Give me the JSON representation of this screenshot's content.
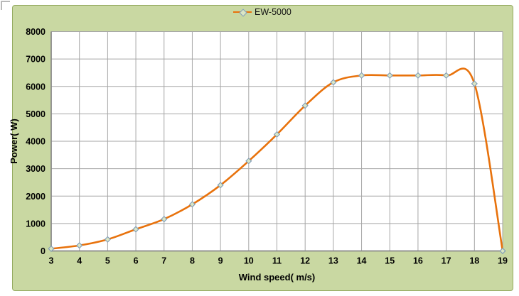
{
  "chart": {
    "legend_label": "EW-5000",
    "x_axis_title": "Wind speed( m/s)",
    "y_axis_title": "Power( W)"
  },
  "chart_data": {
    "type": "line",
    "title": "",
    "xlabel": "Wind speed( m/s)",
    "ylabel": "Power( W)",
    "series": [
      {
        "name": "EW-5000",
        "x": [
          3,
          4,
          5,
          6,
          7,
          8,
          9,
          10,
          11,
          12,
          13,
          14,
          15,
          16,
          17,
          18,
          19
        ],
        "y": [
          80,
          200,
          420,
          790,
          1160,
          1700,
          2400,
          3280,
          4250,
          5300,
          6150,
          6400,
          6400,
          6400,
          6400,
          6100,
          0
        ]
      }
    ],
    "xlim": [
      3,
      19
    ],
    "ylim": [
      0,
      8000
    ],
    "x_ticks": [
      3,
      4,
      5,
      6,
      7,
      8,
      9,
      10,
      11,
      12,
      13,
      14,
      15,
      16,
      17,
      18,
      19
    ],
    "y_ticks": [
      0,
      1000,
      2000,
      3000,
      4000,
      5000,
      6000,
      7000,
      8000
    ],
    "grid": true,
    "legend_position": "top-center",
    "line_smoothing": true,
    "marker": "diamond",
    "colors": {
      "line": "#e8720c",
      "marker_fill": "#dbe6c4",
      "marker_stroke": "#7e9cb9",
      "chart_background": "#c9d8a2",
      "chart_border": "#94aa60",
      "plot_background": "#ffffff",
      "gridline": "#a6a6a6",
      "axis_line": "#8a8a8a",
      "text": "#000000"
    }
  }
}
